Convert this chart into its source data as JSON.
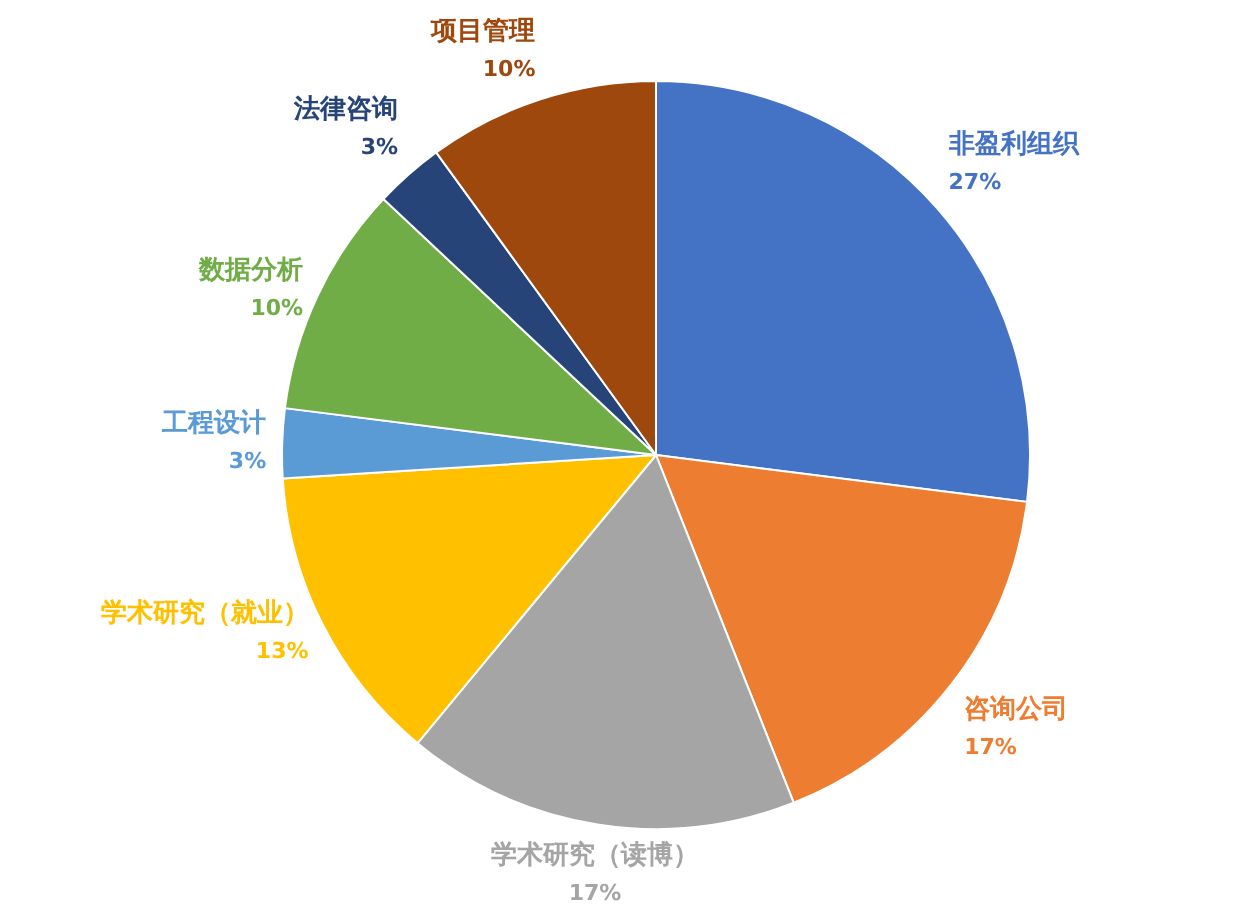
{
  "chart_data": {
    "type": "pie",
    "categories": [
      "非盈利组织",
      "咨询公司",
      "学术研究（读博）",
      "学术研究（就业）",
      "工程设计",
      "数据分析",
      "法律咨询",
      "项目管理"
    ],
    "values": [
      27,
      17,
      17,
      13,
      3,
      10,
      3,
      10
    ],
    "value_labels": [
      "27%",
      "17%",
      "17%",
      "13%",
      "3%",
      "10%",
      "3%",
      "10%"
    ],
    "colors": [
      "#4472c4",
      "#ed7d31",
      "#a5a5a5",
      "#ffc000",
      "#5b9bd5",
      "#70ad47",
      "#264478",
      "#9e480e"
    ],
    "legend": false
  }
}
